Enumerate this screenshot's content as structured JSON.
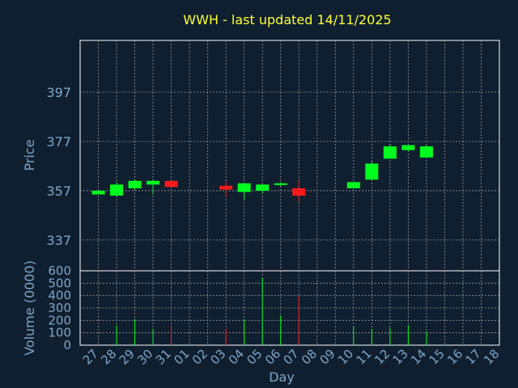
{
  "chart_data": {
    "type": "candlestick",
    "title": "WWH - last updated 14/11/2025",
    "xlabel": "Day",
    "price_panel": {
      "ylabel": "Price",
      "yticks": [
        337,
        357,
        377,
        397
      ],
      "ylim": [
        324.5,
        418
      ]
    },
    "volume_panel": {
      "ylabel": "Volume (0000)",
      "yticks": [
        0,
        100,
        200,
        300,
        400,
        500,
        600
      ],
      "ylim": [
        0,
        600
      ]
    },
    "x_ticks": [
      "27",
      "28",
      "29",
      "30",
      "31",
      "01",
      "02",
      "03",
      "04",
      "05",
      "06",
      "07",
      "08",
      "09",
      "10",
      "11",
      "12",
      "13",
      "14",
      "15",
      "16",
      "17",
      "18"
    ],
    "candles": [
      {
        "day": "27",
        "open": 355.5,
        "high": 357,
        "low": 355.5,
        "close": 357,
        "volume": 0
      },
      {
        "day": "28",
        "open": 355,
        "high": 360.5,
        "low": 355,
        "close": 359.5,
        "volume": 160
      },
      {
        "day": "29",
        "open": 358,
        "high": 361.5,
        "low": 357.5,
        "close": 361,
        "volume": 210
      },
      {
        "day": "30",
        "open": 359.5,
        "high": 361.5,
        "low": 355.5,
        "close": 361,
        "volume": 130
      },
      {
        "day": "31",
        "open": 361,
        "high": 361,
        "low": 358,
        "close": 358.5,
        "volume": 160
      },
      {
        "day": "03",
        "open": 359,
        "high": 360.5,
        "low": 354.5,
        "close": 357.5,
        "volume": 130
      },
      {
        "day": "04",
        "open": 356.5,
        "high": 360,
        "low": 353.5,
        "close": 360,
        "volume": 210
      },
      {
        "day": "05",
        "open": 357,
        "high": 359.5,
        "low": 356,
        "close": 359.5,
        "volume": 540
      },
      {
        "day": "06",
        "open": 359.5,
        "high": 360.5,
        "low": 359,
        "close": 360,
        "volume": 240
      },
      {
        "day": "07",
        "open": 358,
        "high": 361,
        "low": 352.5,
        "close": 355,
        "volume": 400
      },
      {
        "day": "10",
        "open": 358,
        "high": 360.5,
        "low": 358,
        "close": 360.5,
        "volume": 150
      },
      {
        "day": "11",
        "open": 361.5,
        "high": 369,
        "low": 361,
        "close": 368,
        "volume": 130
      },
      {
        "day": "12",
        "open": 370,
        "high": 376,
        "low": 370,
        "close": 375,
        "volume": 140
      },
      {
        "day": "13",
        "open": 373.5,
        "high": 375.5,
        "low": 373,
        "close": 375.5,
        "volume": 160
      },
      {
        "day": "14",
        "open": 370.5,
        "high": 375.5,
        "low": 370.5,
        "close": 375,
        "volume": 110
      }
    ],
    "colors": {
      "background": "#0f1f30",
      "up": "#00ff1e",
      "down": "#ff1a1a",
      "title": "#ffff33",
      "axis_text": "#7fa6c8",
      "axis_line": "#ffffff",
      "grid": "#9a9a9a"
    },
    "grid": true,
    "legend": "none"
  }
}
